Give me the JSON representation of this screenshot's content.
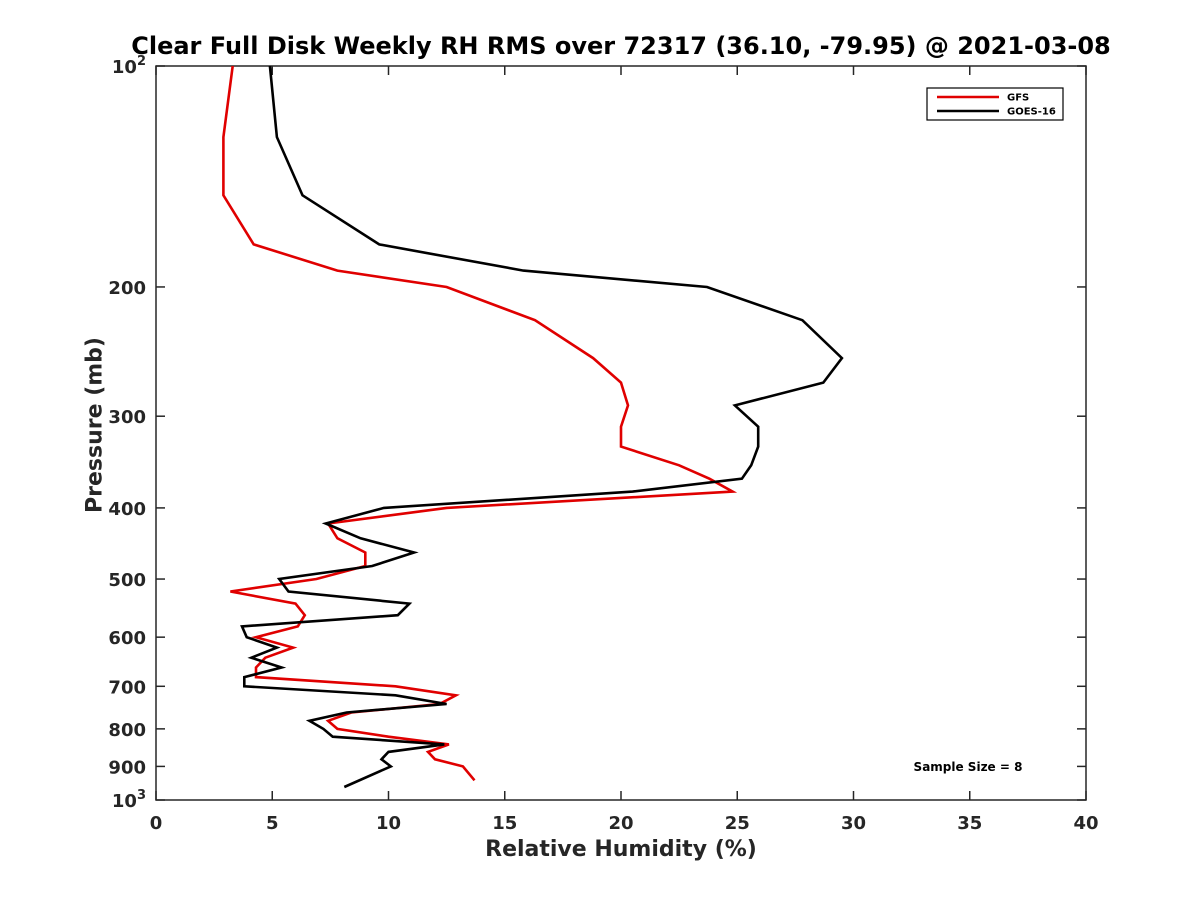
{
  "chart_data": {
    "type": "line",
    "title": "Clear Full Disk Weekly RH RMS over 72317 (36.10, -79.95) @ 2021-03-08",
    "xlabel": "Relative Humidity (%)",
    "ylabel": "Pressure (mb)",
    "xlim": [
      0,
      40
    ],
    "ylim": [
      100,
      1000
    ],
    "yscale": "log",
    "y_reversed": true,
    "grid": false,
    "legend_position": "top-right",
    "x_ticks": [
      "0",
      "5",
      "10",
      "15",
      "20",
      "25",
      "30",
      "35",
      "40"
    ],
    "x_tick_values": [
      0,
      5,
      10,
      15,
      20,
      25,
      30,
      35,
      40
    ],
    "y_tick_values": [
      100,
      200,
      300,
      400,
      500,
      600,
      700,
      800,
      900,
      1000
    ],
    "y_ticks": [
      {
        "base": "10",
        "exp": "2"
      },
      {
        "base": "200",
        "exp": ""
      },
      {
        "base": "300",
        "exp": ""
      },
      {
        "base": "400",
        "exp": ""
      },
      {
        "base": "500",
        "exp": ""
      },
      {
        "base": "600",
        "exp": ""
      },
      {
        "base": "700",
        "exp": ""
      },
      {
        "base": "800",
        "exp": ""
      },
      {
        "base": "900",
        "exp": ""
      },
      {
        "base": "10",
        "exp": "3"
      }
    ],
    "series": [
      {
        "name": "GFS",
        "color": "#e00000",
        "points": [
          [
            3.3,
            100
          ],
          [
            2.9,
            125
          ],
          [
            2.9,
            150
          ],
          [
            4.2,
            175
          ],
          [
            7.8,
            190
          ],
          [
            12.5,
            200
          ],
          [
            16.3,
            222
          ],
          [
            18.8,
            250
          ],
          [
            20.0,
            270
          ],
          [
            20.3,
            290
          ],
          [
            20.0,
            310
          ],
          [
            20.0,
            330
          ],
          [
            22.5,
            350
          ],
          [
            23.8,
            365
          ],
          [
            24.8,
            380
          ],
          [
            12.5,
            400
          ],
          [
            7.4,
            420
          ],
          [
            7.8,
            440
          ],
          [
            9.0,
            460
          ],
          [
            9.0,
            480
          ],
          [
            6.9,
            500
          ],
          [
            3.2,
            520
          ],
          [
            6.0,
            540
          ],
          [
            6.4,
            560
          ],
          [
            6.1,
            580
          ],
          [
            4.3,
            600
          ],
          [
            5.9,
            620
          ],
          [
            4.7,
            640
          ],
          [
            4.3,
            660
          ],
          [
            4.3,
            680
          ],
          [
            10.3,
            700
          ],
          [
            12.9,
            720
          ],
          [
            12.2,
            740
          ],
          [
            8.4,
            760
          ],
          [
            7.4,
            780
          ],
          [
            7.8,
            800
          ],
          [
            10.0,
            820
          ],
          [
            12.6,
            840
          ],
          [
            11.7,
            860
          ],
          [
            12.0,
            880
          ],
          [
            13.2,
            900
          ],
          [
            13.7,
            940
          ]
        ]
      },
      {
        "name": "GOES-16",
        "color": "#000000",
        "points": [
          [
            4.9,
            100
          ],
          [
            5.2,
            125
          ],
          [
            6.3,
            150
          ],
          [
            9.6,
            175
          ],
          [
            15.8,
            190
          ],
          [
            23.7,
            200
          ],
          [
            27.8,
            222
          ],
          [
            29.5,
            250
          ],
          [
            28.7,
            270
          ],
          [
            24.9,
            290
          ],
          [
            25.9,
            310
          ],
          [
            25.9,
            330
          ],
          [
            25.6,
            350
          ],
          [
            25.2,
            365
          ],
          [
            20.5,
            380
          ],
          [
            9.8,
            400
          ],
          [
            7.3,
            420
          ],
          [
            8.8,
            440
          ],
          [
            11.1,
            460
          ],
          [
            9.3,
            480
          ],
          [
            5.3,
            500
          ],
          [
            5.7,
            520
          ],
          [
            10.9,
            540
          ],
          [
            10.4,
            560
          ],
          [
            3.7,
            580
          ],
          [
            3.9,
            600
          ],
          [
            5.2,
            620
          ],
          [
            4.1,
            640
          ],
          [
            5.4,
            660
          ],
          [
            3.8,
            680
          ],
          [
            3.8,
            700
          ],
          [
            10.3,
            720
          ],
          [
            12.5,
            740
          ],
          [
            8.2,
            760
          ],
          [
            6.6,
            780
          ],
          [
            7.2,
            800
          ],
          [
            7.6,
            820
          ],
          [
            12.4,
            840
          ],
          [
            10.0,
            860
          ],
          [
            9.7,
            880
          ],
          [
            10.1,
            900
          ],
          [
            8.1,
            960
          ]
        ]
      }
    ],
    "annotations": [
      "Sample Size = 8"
    ]
  }
}
